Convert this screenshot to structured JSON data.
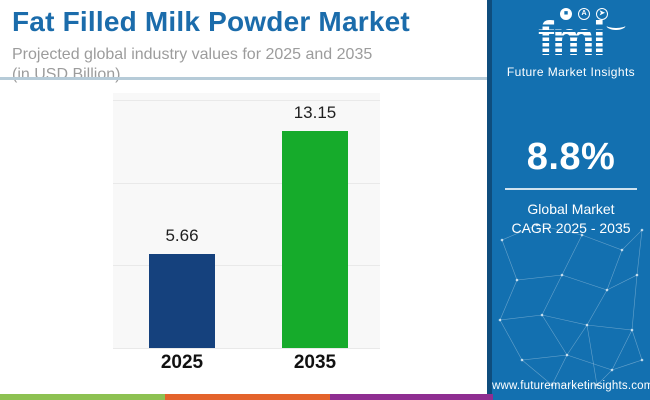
{
  "header": {
    "title": "Fat Filled Milk Powder Market",
    "subtitle_line1": "Projected global industry values for 2025 and 2035",
    "subtitle_line2": "(in USD Billion)"
  },
  "chart_data": {
    "type": "bar",
    "categories": [
      "2025",
      "2035"
    ],
    "values": [
      5.66,
      13.15
    ],
    "value_labels": [
      "5.66",
      "13.15"
    ],
    "bar_colors": [
      "#15417d",
      "#16ab2b"
    ],
    "title": "Fat Filled Milk Powder Market",
    "subtitle": "Projected global industry values for 2025 and 2035 (in USD Billion)",
    "xlabel": "",
    "ylabel": "",
    "unit": "USD Billion",
    "ylim": [
      0,
      15
    ],
    "gridline_values": [
      0,
      5,
      10,
      15
    ],
    "grid": true,
    "legend": "none"
  },
  "sidebar": {
    "logo": {
      "text": "fmi",
      "wordmark": "Future Market Insights",
      "icons": [
        "map-icon",
        "compass-icon",
        "globe-plane-icon"
      ]
    },
    "stat": {
      "value": "8.8%",
      "caption_line1": "Global Market",
      "caption_line2": "CAGR 2025 - 2035"
    },
    "website": "www.futuremarketinsights.com"
  },
  "footer_stripe": {
    "colors": [
      "#8dc152",
      "#e4632b",
      "#8f2e91"
    ]
  },
  "colors": {
    "title": "#1b6cab",
    "subtitle": "#9c9c9c",
    "header_divider": "#b6cbd8",
    "sidebar": "#1370b0",
    "sidebar_edge": "#0e4d7d",
    "plot_background": "#f8f8f8",
    "gridline": "#e9e9e9",
    "bar_2025": "#15417d",
    "bar_2035": "#16ab2b"
  }
}
